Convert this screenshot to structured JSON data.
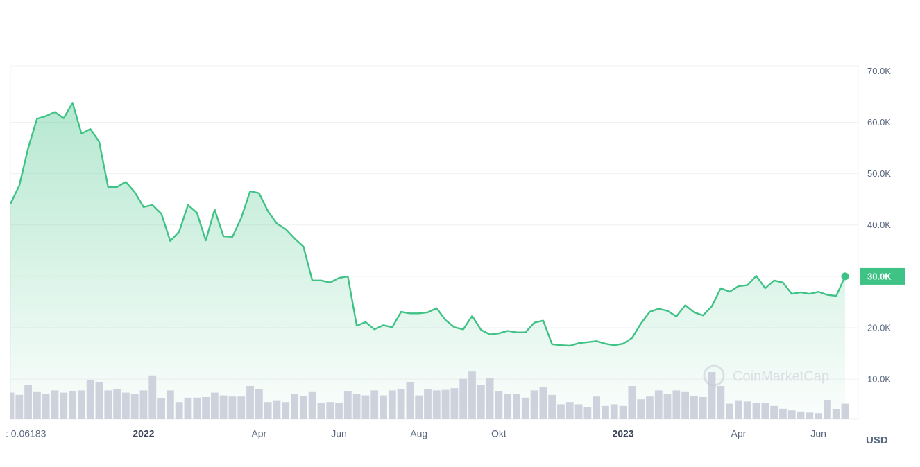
{
  "chart_data": {
    "type": "line",
    "categories": [
      ": 0.06183",
      null,
      null,
      null,
      null,
      null,
      null,
      null,
      null,
      null,
      null,
      null,
      null,
      null,
      null,
      "2022",
      null,
      null,
      null,
      null,
      null,
      null,
      null,
      null,
      null,
      null,
      null,
      null,
      "Apr",
      null,
      null,
      null,
      null,
      null,
      null,
      null,
      null,
      "Jun",
      null,
      null,
      null,
      null,
      null,
      null,
      null,
      null,
      "Aug",
      null,
      null,
      null,
      null,
      null,
      null,
      null,
      null,
      "Okt",
      null,
      null,
      null,
      null,
      null,
      null,
      null,
      null,
      null,
      null,
      null,
      null,
      null,
      "2023",
      null,
      null,
      null,
      null,
      null,
      null,
      null,
      null,
      null,
      null,
      null,
      null,
      "Apr",
      null,
      null,
      null,
      null,
      null,
      null,
      null,
      null,
      "Jun",
      null,
      null,
      null
    ],
    "values": [
      44100,
      47700,
      55000,
      60700,
      61200,
      62000,
      60800,
      63800,
      57800,
      58700,
      56200,
      47400,
      47400,
      48400,
      46400,
      43500,
      43900,
      42200,
      36900,
      38700,
      43900,
      42400,
      37000,
      43000,
      37800,
      37700,
      41400,
      46600,
      46200,
      42700,
      40300,
      39200,
      37400,
      35800,
      29200,
      29200,
      28800,
      29700,
      30000,
      20400,
      21100,
      19700,
      20500,
      20100,
      23100,
      22800,
      22800,
      23000,
      23800,
      21500,
      20100,
      19700,
      22300,
      19600,
      18700,
      18900,
      19400,
      19100,
      19100,
      21000,
      21400,
      16800,
      16600,
      16500,
      17000,
      17200,
      17400,
      16900,
      16600,
      16900,
      18000,
      20800,
      23100,
      23700,
      23300,
      22200,
      24400,
      23000,
      22400,
      24200,
      27700,
      27000,
      28100,
      28300,
      30100,
      27700,
      29200,
      28800,
      26600,
      26900,
      26600,
      27000,
      26400,
      26200,
      30000
    ],
    "color": "#3fc285",
    "volume": [
      48,
      44,
      62,
      49,
      45,
      52,
      48,
      50,
      52,
      70,
      67,
      52,
      55,
      48,
      46,
      52,
      79,
      38,
      52,
      31,
      39,
      39,
      40,
      48,
      43,
      41,
      41,
      60,
      55,
      31,
      33,
      31,
      46,
      42,
      49,
      29,
      31,
      29,
      50,
      45,
      43,
      52,
      43,
      52,
      55,
      67,
      43,
      55,
      52,
      53,
      56,
      73,
      86,
      62,
      75,
      51,
      46,
      46,
      39,
      52,
      58,
      44,
      27,
      31,
      27,
      22,
      41,
      24,
      27,
      24,
      60,
      36,
      41,
      52,
      45,
      52,
      49,
      42,
      40,
      85,
      60,
      28,
      33,
      32,
      30,
      30,
      24,
      19,
      16,
      14,
      12,
      11,
      34,
      18,
      28
    ],
    "volume_color": "#cdd2dd",
    "y2lim": [
      0,
      100
    ],
    "ylim": [
      2200,
      71000
    ],
    "yticks": [
      {
        "value": 10000,
        "label": "10.0K"
      },
      {
        "value": 20000,
        "label": "20.0K"
      },
      {
        "value": 30000,
        "label": "30.0K"
      },
      {
        "value": 40000,
        "label": "40.0K"
      },
      {
        "value": 50000,
        "label": "50.0K"
      },
      {
        "value": 60000,
        "label": "60.0K"
      },
      {
        "value": 70000,
        "label": "70.0K"
      }
    ],
    "grid": true,
    "currency": "USD",
    "watermark": "CoinMarketCap"
  }
}
